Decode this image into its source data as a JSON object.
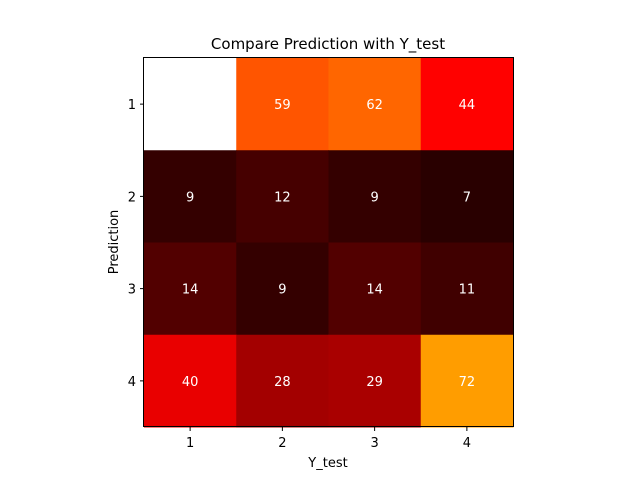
{
  "chart_data": {
    "type": "heatmap",
    "title": "Compare Prediction with Y_test",
    "xlabel": "Y_test",
    "ylabel": "Prediction",
    "x_categories": [
      "1",
      "2",
      "3",
      "4"
    ],
    "y_categories": [
      "1",
      "2",
      "3",
      "4"
    ],
    "values": [
      [
        null,
        59,
        62,
        44
      ],
      [
        9,
        12,
        9,
        7
      ],
      [
        14,
        9,
        14,
        11
      ],
      [
        40,
        28,
        29,
        72
      ]
    ],
    "colormap": "hot",
    "grid": false,
    "legend": "none",
    "cell_label_color": "#ffffff",
    "background_color": "#ffffff"
  }
}
